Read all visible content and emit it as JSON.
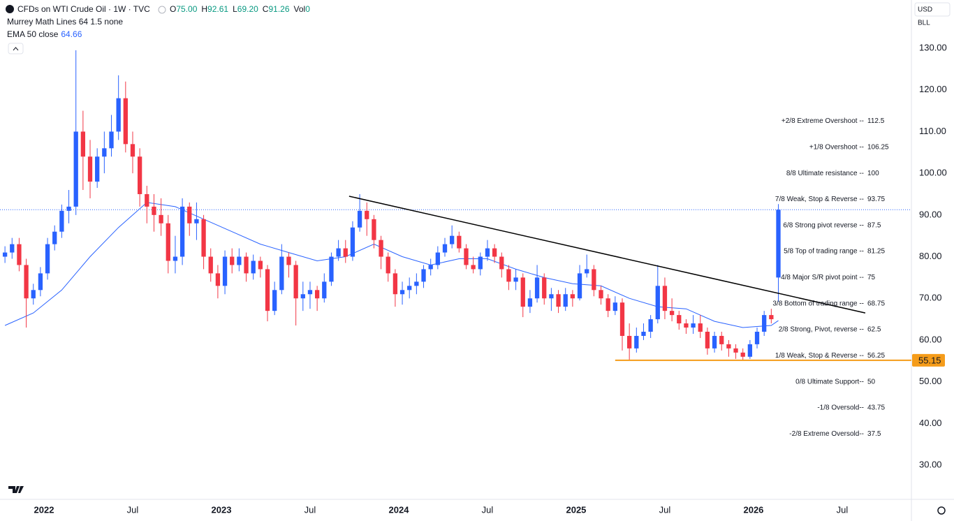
{
  "chart_data": {
    "type": "candlestick",
    "title": "CFDs on WTI Crude Oil · 1W · TVC",
    "legend_values": [
      {
        "key": "O",
        "label": "75.00"
      },
      {
        "key": "H",
        "label": "92.61"
      },
      {
        "key": "L",
        "label": "69.20"
      },
      {
        "key": "C",
        "label": "91.26"
      },
      {
        "key": "Vol",
        "label": "0"
      }
    ],
    "indicator": "Murrey Math Lines 64 1.5 none",
    "currency": "USD",
    "unit": "BLL",
    "up_color": "#2962ff",
    "down_color": "#f23645",
    "x": [
      2021.78,
      2021.82,
      2021.86,
      2021.9,
      2021.94,
      2021.98,
      2022.02,
      2022.06,
      2022.1,
      2022.14,
      2022.18,
      2022.22,
      2022.26,
      2022.3,
      2022.34,
      2022.38,
      2022.42,
      2022.46,
      2022.5,
      2022.54,
      2022.58,
      2022.62,
      2022.66,
      2022.7,
      2022.74,
      2022.78,
      2022.82,
      2022.86,
      2022.9,
      2022.94,
      2022.98,
      2023.02,
      2023.06,
      2023.1,
      2023.14,
      2023.18,
      2023.22,
      2023.26,
      2023.3,
      2023.34,
      2023.38,
      2023.42,
      2023.46,
      2023.5,
      2023.54,
      2023.58,
      2023.62,
      2023.66,
      2023.7,
      2023.74,
      2023.78,
      2023.82,
      2023.86,
      2023.9,
      2023.94,
      2023.98,
      2024.02,
      2024.06,
      2024.1,
      2024.14,
      2024.18,
      2024.22,
      2024.26,
      2024.3,
      2024.34,
      2024.38,
      2024.42,
      2024.46,
      2024.5,
      2024.54,
      2024.58,
      2024.62,
      2024.66,
      2024.7,
      2024.74,
      2024.78,
      2024.82,
      2024.86,
      2024.9,
      2024.94,
      2024.98,
      2025.02,
      2025.06,
      2025.1,
      2025.14,
      2025.18,
      2025.22,
      2025.26,
      2025.3,
      2025.34,
      2025.38,
      2025.42,
      2025.46,
      2025.5,
      2025.54,
      2025.58,
      2025.62,
      2025.66,
      2025.7,
      2025.74,
      2025.78,
      2025.82,
      2025.86,
      2025.9,
      2025.94,
      2025.98,
      2026.02,
      2026.06,
      2026.1,
      2026.14
    ],
    "open": [
      80,
      81,
      83,
      78,
      70,
      72,
      76,
      83,
      86,
      91,
      92,
      110,
      104,
      98,
      104,
      106,
      110,
      118,
      107,
      104,
      95,
      92,
      90,
      88,
      79,
      80,
      92,
      88,
      89,
      80,
      76,
      73,
      80,
      78,
      80,
      76,
      79,
      77,
      67,
      72,
      80,
      78,
      70,
      71,
      72,
      70,
      74,
      80,
      82,
      80,
      87,
      91,
      89,
      84,
      80,
      76,
      71,
      72,
      73,
      74,
      77,
      78,
      81,
      83,
      85,
      82,
      78,
      77,
      80,
      82,
      80,
      77,
      74,
      75,
      68,
      70,
      75,
      70,
      71,
      68,
      71,
      70,
      76,
      77,
      72,
      70,
      67,
      69,
      61,
      58,
      61,
      62,
      65,
      73,
      67,
      66,
      64,
      63,
      64,
      62,
      58,
      61,
      59,
      58,
      57,
      56,
      59,
      62,
      66,
      75
    ],
    "high": [
      82.5,
      84.5,
      84.5,
      79.5,
      73.5,
      77.5,
      84.5,
      87.5,
      92.5,
      96,
      129.5,
      115,
      108,
      106,
      110,
      114,
      123.5,
      122,
      110,
      106,
      97,
      95,
      94,
      90,
      85,
      94,
      93,
      93,
      90,
      82,
      78,
      81.5,
      82,
      82,
      81,
      80.5,
      80,
      78,
      74,
      83,
      81,
      79,
      74,
      74,
      73,
      76,
      81,
      84,
      84,
      88.5,
      95,
      93,
      90,
      85,
      81,
      77,
      74,
      75,
      76,
      78,
      79.5,
      82.5,
      84.5,
      87.5,
      86,
      83,
      80,
      81,
      84,
      83,
      81,
      78,
      77,
      76,
      72,
      78,
      76,
      72.5,
      72,
      72.5,
      72,
      78,
      80.5,
      78,
      73,
      71,
      70.5,
      70,
      64,
      63,
      64,
      66,
      78,
      75,
      70,
      67,
      65,
      66,
      66,
      63,
      62,
      62,
      60,
      59,
      58,
      60,
      63,
      67,
      67.5,
      92.61
    ],
    "low": [
      78.5,
      79.5,
      76.5,
      63,
      68.5,
      70.5,
      74.5,
      81.5,
      84.5,
      88,
      90,
      96,
      94,
      96.5,
      100,
      104,
      108,
      105,
      100,
      92,
      88,
      86,
      85,
      76,
      76,
      78,
      85,
      84,
      77,
      74,
      70,
      71,
      76,
      76.5,
      74,
      74.5,
      75,
      64.5,
      66,
      71,
      75,
      63.5,
      67,
      67.5,
      67,
      69,
      73,
      79,
      78.5,
      79,
      86,
      85,
      82,
      77,
      74,
      68,
      68.5,
      70,
      71,
      72.5,
      75.5,
      77,
      80,
      82,
      81,
      77,
      76,
      75.5,
      79,
      78.5,
      75,
      72,
      72,
      65.5,
      66.5,
      69,
      68.5,
      67,
      66.5,
      67,
      68,
      69.5,
      75,
      70.5,
      68.5,
      65.5,
      66,
      57.5,
      55.15,
      57,
      60,
      60.5,
      64,
      65,
      64.5,
      62.5,
      61.5,
      61.5,
      60.5,
      56.5,
      57,
      57.5,
      56,
      55.5,
      55.3,
      55.5,
      58,
      61,
      64,
      69.2
    ],
    "close": [
      81,
      83,
      78,
      70,
      72,
      76,
      83,
      86,
      91,
      92,
      110,
      104,
      98,
      104,
      106,
      110,
      118,
      107,
      104,
      95,
      92,
      90,
      88,
      79,
      80,
      92,
      88,
      89,
      80,
      76,
      73,
      80,
      78,
      80,
      76,
      79,
      77,
      67,
      72,
      80,
      78,
      70,
      71,
      72,
      70,
      74,
      80,
      82,
      80,
      87,
      91,
      89,
      84,
      80,
      76,
      71,
      72,
      73,
      74,
      77,
      78,
      81,
      83,
      85,
      82,
      78,
      77,
      80,
      82,
      80,
      77,
      74,
      75,
      68,
      70,
      75,
      70,
      71,
      68,
      71,
      70,
      76,
      77,
      72,
      70,
      67,
      69,
      61,
      58,
      61,
      62,
      65,
      73,
      67,
      66,
      64,
      63,
      64,
      62,
      58,
      61,
      59,
      58,
      57,
      56,
      59,
      62,
      66,
      65,
      91.26
    ],
    "ema": {
      "name": "EMA 50 close",
      "color": "#2962ff",
      "x": [
        2021.78,
        2021.94,
        2022.1,
        2022.26,
        2022.42,
        2022.58,
        2022.74,
        2022.9,
        2023.06,
        2023.22,
        2023.38,
        2023.54,
        2023.7,
        2023.86,
        2024.02,
        2024.18,
        2024.34,
        2024.5,
        2024.66,
        2024.82,
        2024.98,
        2025.14,
        2025.3,
        2025.46,
        2025.62,
        2025.78,
        2025.94,
        2026.1,
        2026.14
      ],
      "values": [
        63.5,
        66.5,
        72,
        80,
        87,
        93,
        92,
        89,
        86,
        83,
        81,
        79,
        80,
        83,
        80,
        78,
        79.5,
        79.5,
        77,
        75,
        73.5,
        73,
        70,
        68,
        67.5,
        64.5,
        63,
        63.5,
        64.66
      ]
    },
    "murrey": [
      {
        "label": "+2/8 Extreme Overshoot --",
        "value": 112.5,
        "color": "#f23645"
      },
      {
        "label": "+1/8 Overshoot --",
        "value": 106.25,
        "color": "#f23645"
      },
      {
        "label": "8/8 Ultimate resistance --",
        "value": 100,
        "color": "#00bcd4"
      },
      {
        "label": "7/8 Weak, Stop & Reverse --",
        "value": 93.75,
        "color": "#ff9800"
      },
      {
        "label": "6/8 Strong pivot reverse --",
        "value": 87.5,
        "color": "#e040fb"
      },
      {
        "label": "5/8 Top of trading range --",
        "value": 81.25,
        "color": "#4caf50"
      },
      {
        "label": "4/8 Major S/R pivot point --",
        "value": 75,
        "color": "#2196f3"
      },
      {
        "label": "3/8 Bottom of trading range --",
        "value": 68.75,
        "color": "#4caf50"
      },
      {
        "label": "2/8 Strong, Pivot, reverse --",
        "value": 62.5,
        "color": "#e040fb"
      },
      {
        "label": "1/8 Weak, Stop & Reverse --",
        "value": 56.25,
        "color": "#ff9800"
      },
      {
        "label": "0/8 Ultimate Support--",
        "value": 50,
        "color": "#00bcd4"
      },
      {
        "label": "-1/8 Oversold--",
        "value": 43.75,
        "color": "#4caf50"
      },
      {
        "label": "-2/8 Extreme Oversold--",
        "value": 37.5,
        "color": "#4caf50"
      }
    ],
    "trendline": {
      "x": [
        2023.72,
        2026.63
      ],
      "y": [
        94.5,
        66.5
      ],
      "color": "#000000"
    },
    "support_line": {
      "value": 55.15,
      "x_start": 2025.22,
      "color": "#f59c1a"
    },
    "xlim": [
      2021.752,
      2026.89
    ],
    "ylim": [
      21.8,
      141.56
    ],
    "xticks": [
      {
        "value": 2022,
        "label": "2022"
      },
      {
        "value": 2022.5,
        "label": "Jul"
      },
      {
        "value": 2023,
        "label": "2023"
      },
      {
        "value": 2023.5,
        "label": "Jul"
      },
      {
        "value": 2024,
        "label": "2024"
      },
      {
        "value": 2024.5,
        "label": "Jul"
      },
      {
        "value": 2025,
        "label": "2025"
      },
      {
        "value": 2025.5,
        "label": "Jul"
      },
      {
        "value": 2026,
        "label": "2026"
      },
      {
        "value": 2026.5,
        "label": "Jul"
      }
    ],
    "yticks": [
      {
        "value": 130,
        "label": "130.00"
      },
      {
        "value": 120,
        "label": "120.00"
      },
      {
        "value": 110,
        "label": "110.00"
      },
      {
        "value": 100,
        "label": "100.00"
      },
      {
        "value": 90,
        "label": "90.00"
      },
      {
        "value": 80,
        "label": "80.00"
      },
      {
        "value": 70,
        "label": "70.00"
      },
      {
        "value": 60,
        "label": "60.00"
      },
      {
        "value": 50,
        "label": "50.00"
      },
      {
        "value": 40,
        "label": "40.00"
      },
      {
        "value": 30,
        "label": "30.00"
      }
    ],
    "grid": false
  }
}
